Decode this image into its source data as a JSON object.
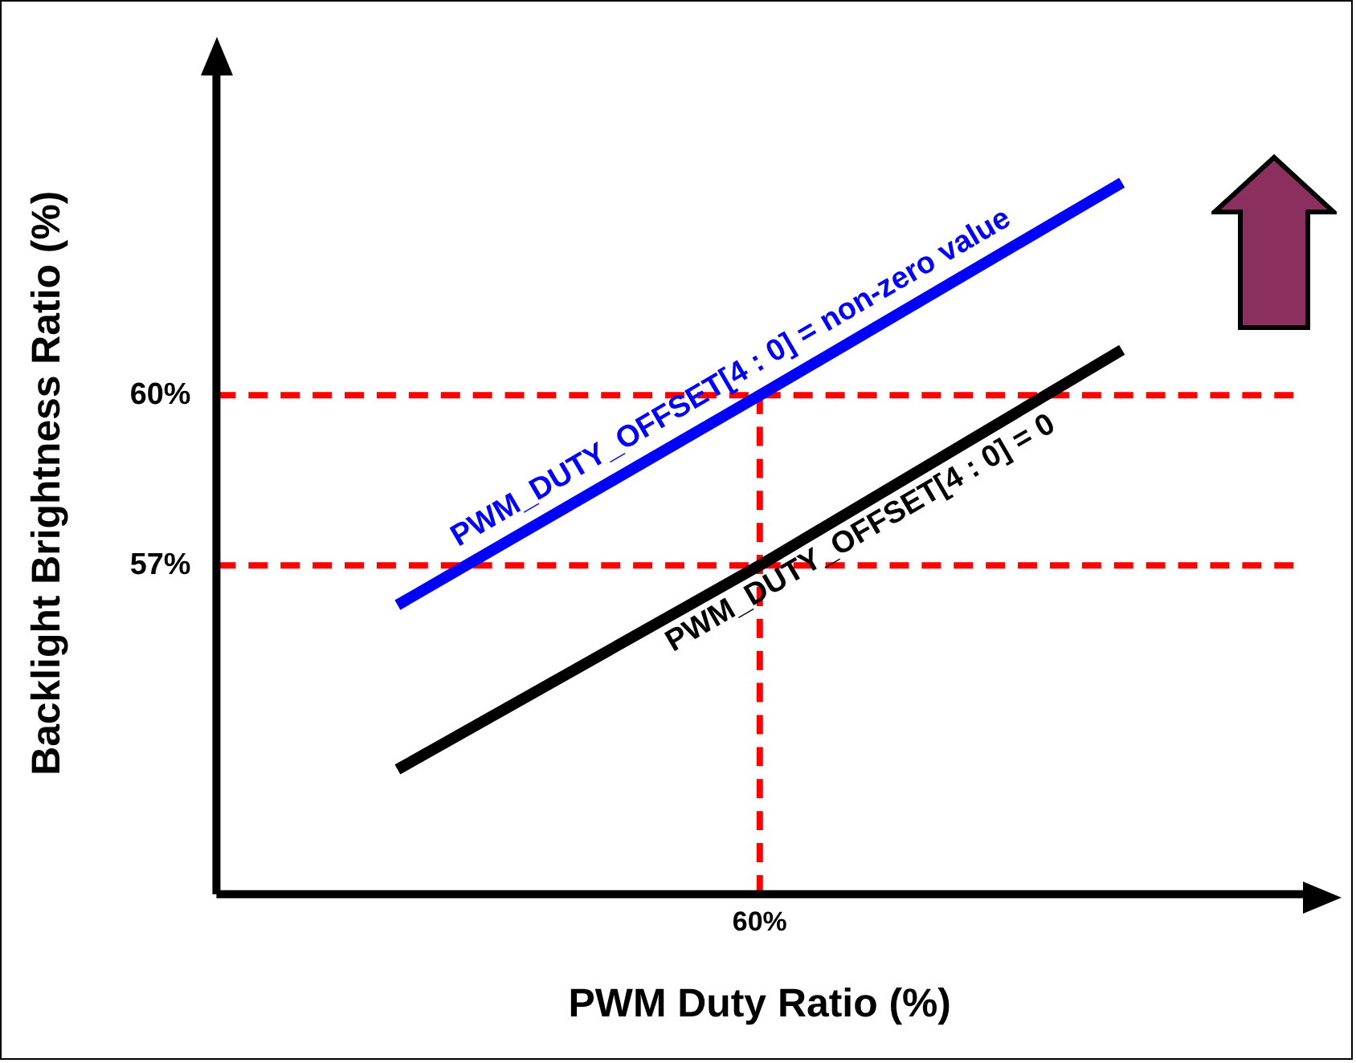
{
  "chart_data": {
    "type": "line",
    "xlabel": "PWM Duty Ratio (%)",
    "ylabel": "Backlight Brightness Ratio (%)",
    "categories": [
      null,
      "60%",
      null
    ],
    "series": [
      {
        "name": "PWM_DUTY_OFFSET[4 : 0] = non-zero value",
        "color": "#0000ff",
        "values": [
          56.3,
          60.0,
          63.75
        ]
      },
      {
        "name": "PWM_DUTY_OFFSET[4 : 0] = 0",
        "color": "#000000",
        "values": [
          53.4,
          57.0,
          60.8
        ]
      }
    ],
    "ylim": [
      51.2,
      65.7
    ],
    "yticks": [
      {
        "value": 57,
        "label": "57%"
      },
      {
        "value": 60,
        "label": "60%"
      }
    ],
    "ref_lines": [
      {
        "axis": "y",
        "value": 60,
        "color": "#ff0000",
        "line_style": "dashed"
      },
      {
        "axis": "y",
        "value": 57,
        "color": "#ff0000",
        "line_style": "dashed"
      },
      {
        "axis": "x",
        "value": "60%",
        "color": "#ff0000",
        "line_style": "dashed"
      }
    ],
    "grid": false,
    "legend": false,
    "marker": "none",
    "line_style": "solid"
  }
}
